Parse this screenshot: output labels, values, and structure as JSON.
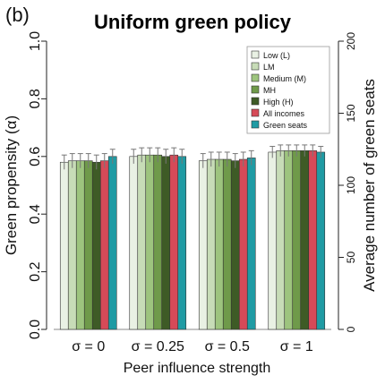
{
  "chart_data": {
    "type": "bar",
    "panel_label": "(b)",
    "title": "Uniform green policy",
    "xlabel": "Peer influence strength",
    "ylabel": "Green propensity (α)",
    "ylabel_right": "Average number of green seats",
    "ylim": [
      0,
      1
    ],
    "ylim_right": [
      0,
      200
    ],
    "yticks": [
      "0.0",
      "0.2",
      "0.4",
      "0.6",
      "0.8",
      "1.0"
    ],
    "yticks_right": [
      "0",
      "50",
      "100",
      "150",
      "200"
    ],
    "categories": [
      "σ = 0",
      "σ = 0.25",
      "σ = 0.5",
      "σ = 1"
    ],
    "legend_position": "top-right",
    "series": [
      {
        "name": "Low (L)",
        "color": "#e9f1e4",
        "values": [
          0.58,
          0.6,
          0.585,
          0.615
        ],
        "errors": [
          0.025,
          0.025,
          0.025,
          0.02
        ]
      },
      {
        "name": "LM",
        "color": "#c7dcb7",
        "values": [
          0.585,
          0.605,
          0.59,
          0.62
        ],
        "errors": [
          0.025,
          0.025,
          0.025,
          0.02
        ]
      },
      {
        "name": "Medium (M)",
        "color": "#9dc47e",
        "values": [
          0.585,
          0.605,
          0.59,
          0.62
        ],
        "errors": [
          0.025,
          0.025,
          0.025,
          0.02
        ]
      },
      {
        "name": "MH",
        "color": "#6f9a4a",
        "values": [
          0.585,
          0.605,
          0.59,
          0.62
        ],
        "errors": [
          0.025,
          0.025,
          0.025,
          0.02
        ]
      },
      {
        "name": "High (H)",
        "color": "#3e5b26",
        "values": [
          0.58,
          0.6,
          0.585,
          0.62
        ],
        "errors": [
          0.025,
          0.025,
          0.025,
          0.02
        ]
      },
      {
        "name": "All incomes",
        "color": "#d64a58",
        "values": [
          0.585,
          0.605,
          0.59,
          0.62
        ],
        "errors": [
          0.025,
          0.025,
          0.025,
          0.02
        ]
      },
      {
        "name": "Green seats",
        "color": "#1f9ba4",
        "values": [
          0.6,
          0.6,
          0.595,
          0.615
        ],
        "errors": [
          0.025,
          0.025,
          0.025,
          0.02
        ]
      }
    ]
  }
}
